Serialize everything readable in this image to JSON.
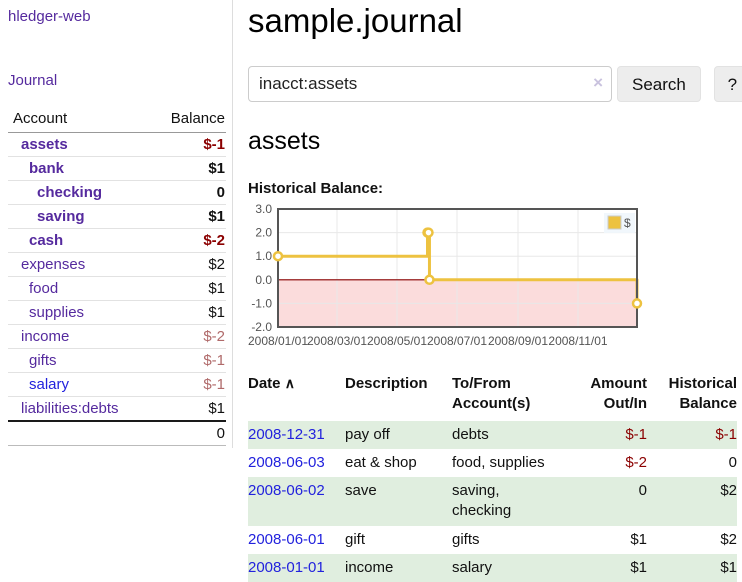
{
  "app": {
    "brand": "hledger-web",
    "nav_journal": "Journal"
  },
  "colors": {
    "link_purple": "#552a9e",
    "link_blue": "#2222dd",
    "negative_strong": "#8b0000",
    "negative_soft": "#b06a6a",
    "row_highlight": "#e0eedf"
  },
  "sidebar": {
    "table_headers": {
      "account": "Account",
      "balance": "Balance"
    },
    "accounts": [
      {
        "name": "assets",
        "balance": "$-1",
        "level": 1,
        "bold": true,
        "balance_style": "negative-strong"
      },
      {
        "name": "bank",
        "balance": "$1",
        "level": 2,
        "bold": true,
        "balance_style": ""
      },
      {
        "name": "checking",
        "balance": "0",
        "level": 3,
        "bold": true,
        "balance_style": ""
      },
      {
        "name": "saving",
        "balance": "$1",
        "level": 3,
        "bold": true,
        "balance_style": ""
      },
      {
        "name": "cash",
        "balance": "$-2",
        "level": 2,
        "bold": true,
        "balance_style": "negative-strong"
      },
      {
        "name": "expenses",
        "balance": "$2",
        "level": 1,
        "bold": false,
        "balance_style": ""
      },
      {
        "name": "food",
        "balance": "$1",
        "level": 2,
        "bold": false,
        "balance_style": ""
      },
      {
        "name": "supplies",
        "balance": "$1",
        "level": 2,
        "bold": false,
        "balance_style": ""
      },
      {
        "name": "income",
        "balance": "$-2",
        "level": 1,
        "bold": false,
        "balance_style": "negative-soft"
      },
      {
        "name": "gifts",
        "balance": "$-1",
        "level": 2,
        "bold": false,
        "balance_style": "negative-soft"
      },
      {
        "name": "salary",
        "balance": "$-1",
        "level": 2,
        "bold": false,
        "balance_style": "negative-soft",
        "link_style": "blue"
      },
      {
        "name": "liabilities:debts",
        "balance": "$1",
        "level": 1,
        "bold": false,
        "balance_style": ""
      }
    ],
    "total": "0"
  },
  "header": {
    "title": "sample.journal"
  },
  "search": {
    "value": "inacct:assets",
    "clear_icon": "×",
    "button": "Search",
    "help_button": "?"
  },
  "account_page": {
    "heading": "assets",
    "chart_label": "Historical Balance:"
  },
  "chart_data": {
    "type": "line",
    "step": true,
    "title": "Historical Balance of assets",
    "x_range": [
      "2008-01-01",
      "2008-12-31"
    ],
    "ylim": [
      -2,
      3
    ],
    "grid": true,
    "legend_position": "top-right",
    "legend": {
      "label": "$",
      "swatch_color": "#edc240"
    },
    "line_color": "#edc240",
    "marker_fill": "#ffffff",
    "zero_line_color": "#8b0000",
    "negative_region_fill": "#fbdcdc",
    "grid_line_color": "#e8e8e8",
    "border_color": "#555555",
    "y_ticks": [
      {
        "v": 3,
        "label": "3.0"
      },
      {
        "v": 2,
        "label": "2.0"
      },
      {
        "v": 1,
        "label": "1.0"
      },
      {
        "v": 0,
        "label": "0.0"
      },
      {
        "v": -1,
        "label": "-1.0"
      },
      {
        "v": -2,
        "label": "-2.0"
      }
    ],
    "x_ticks": [
      {
        "t": "2008-01-01",
        "label": "2008/01/01"
      },
      {
        "t": "2008-03-01",
        "label": "2008/03/01"
      },
      {
        "t": "2008-05-01",
        "label": "2008/05/01"
      },
      {
        "t": "2008-07-01",
        "label": "2008/07/01"
      },
      {
        "t": "2008-09-01",
        "label": "2008/09/01"
      },
      {
        "t": "2008-11-01",
        "label": "2008/11/01"
      }
    ],
    "series": [
      {
        "name": "$",
        "points": [
          {
            "t": "2008-01-01",
            "v": 1
          },
          {
            "t": "2008-06-01",
            "v": 2
          },
          {
            "t": "2008-06-02",
            "v": 2
          },
          {
            "t": "2008-06-03",
            "v": 0
          },
          {
            "t": "2008-12-31",
            "v": -1
          }
        ]
      }
    ]
  },
  "register": {
    "headers": {
      "date": "Date",
      "sort_icon": "∧",
      "description": "Description",
      "accounts": "To/From Account(s)",
      "amount": "Amount Out/In",
      "balance": "Historical Balance"
    },
    "rows": [
      {
        "date": "2008-12-31",
        "description": "pay off",
        "accounts": "debts",
        "amount": "$-1",
        "amount_negative": true,
        "balance": "$-1",
        "balance_negative": true,
        "shaded": true
      },
      {
        "date": "2008-06-03",
        "description": "eat & shop",
        "accounts": "food, supplies",
        "amount": "$-2",
        "amount_negative": true,
        "balance": "0",
        "balance_negative": false,
        "shaded": false
      },
      {
        "date": "2008-06-02",
        "description": "save",
        "accounts": "saving, checking",
        "amount": "0",
        "amount_negative": false,
        "balance": "$2",
        "balance_negative": false,
        "shaded": true
      },
      {
        "date": "2008-06-01",
        "description": "gift",
        "accounts": "gifts",
        "amount": "$1",
        "amount_negative": false,
        "balance": "$2",
        "balance_negative": false,
        "shaded": false
      },
      {
        "date": "2008-01-01",
        "description": "income",
        "accounts": "salary",
        "amount": "$1",
        "amount_negative": false,
        "balance": "$1",
        "balance_negative": false,
        "shaded": true
      }
    ]
  }
}
